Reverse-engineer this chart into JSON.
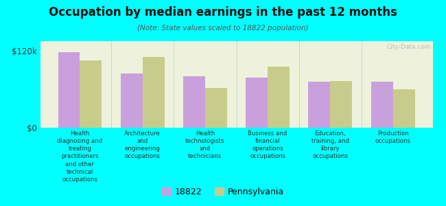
{
  "title": "Occupation by median earnings in the past 12 months",
  "subtitle": "(Note: State values scaled to 18822 population)",
  "categories": [
    "Health\ndiagnosing and\ntreating\npractitioners\nand other\ntechnical\noccupations",
    "Architecture\nand\nengineering\noccupations",
    "Health\ntechnologists\nand\ntechnicians",
    "Business and\nfinancial\noperations\noccupations",
    "Education,\ntraining, and\nlibrary\noccupations",
    "Production\noccupations"
  ],
  "values_18822": [
    118000,
    85000,
    80000,
    78000,
    72000,
    72000
  ],
  "values_pennsylvania": [
    105000,
    110000,
    62000,
    95000,
    73000,
    60000
  ],
  "color_18822": "#c9a0dc",
  "color_pennsylvania": "#c8cc8a",
  "background_color": "#00ffff",
  "plot_bg_color": "#eef2dc",
  "ylim": [
    0,
    135000
  ],
  "ytick_vals": [
    0,
    120000
  ],
  "ytick_labels": [
    "$0",
    "$120k"
  ],
  "bar_width": 0.35,
  "legend_labels": [
    "18822",
    "Pennsylvania"
  ],
  "watermark": "City-Data.com"
}
